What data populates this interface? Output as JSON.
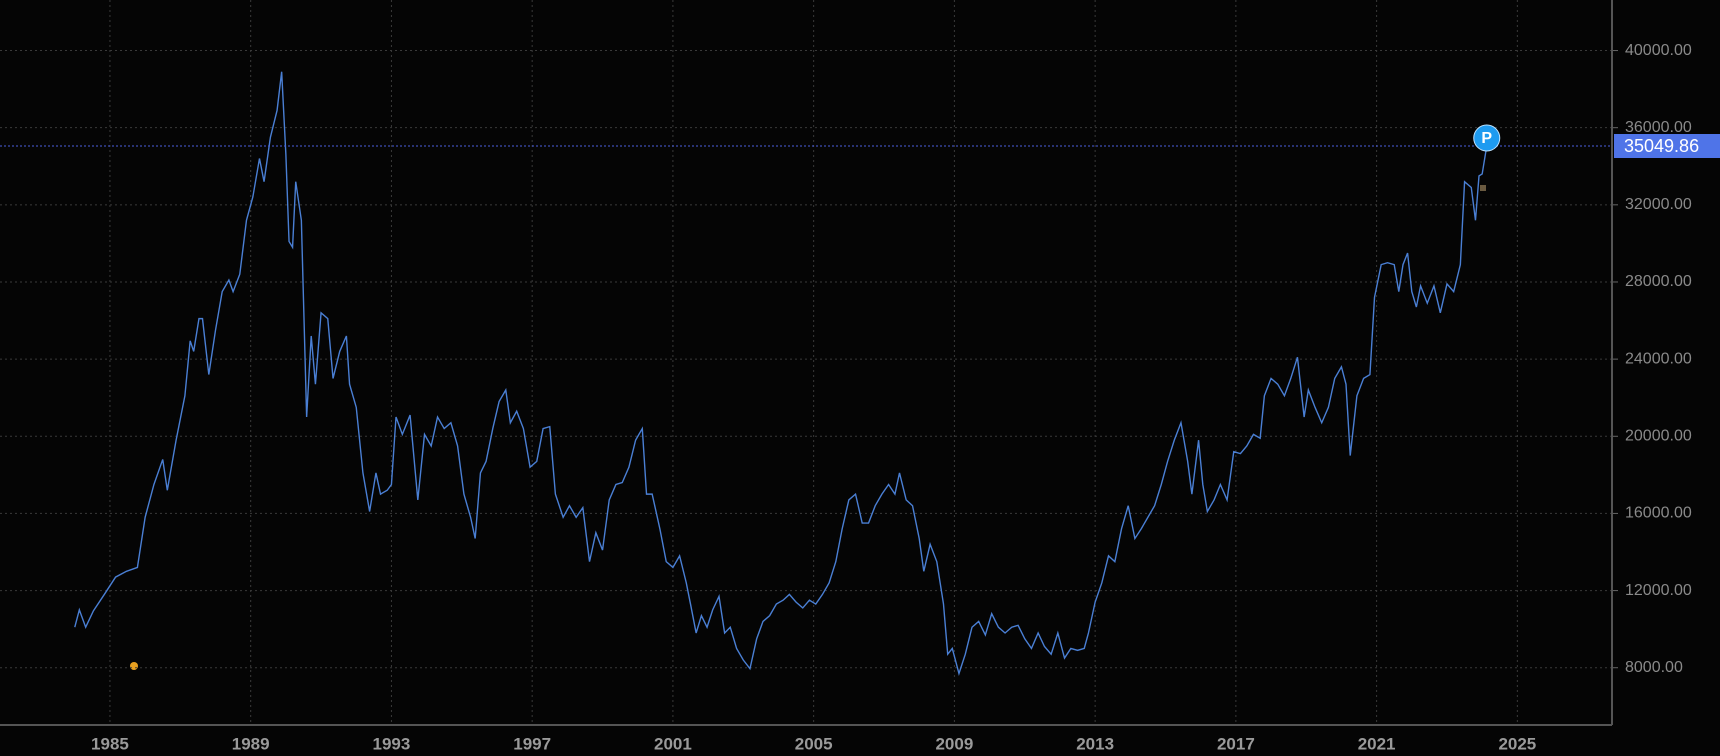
{
  "chart_data": {
    "type": "line",
    "color": "#4a7fd4",
    "grid": true,
    "xlim": [
      1981.875,
      2027.69
    ],
    "ylim": [
      5030,
      42620
    ],
    "xticks": [
      1985,
      1989,
      1993,
      1997,
      2001,
      2005,
      2009,
      2013,
      2017,
      2021,
      2025
    ],
    "yticks": [
      {
        "value": 8000,
        "label": "8000.00"
      },
      {
        "value": 12000,
        "label": "12000.00"
      },
      {
        "value": 16000,
        "label": "16000.00"
      },
      {
        "value": 20000,
        "label": "20000.00"
      },
      {
        "value": 24000,
        "label": "24000.00"
      },
      {
        "value": 28000,
        "label": "28000.00"
      },
      {
        "value": 32000,
        "label": "32000.00"
      },
      {
        "value": 36000,
        "label": "36000.00"
      },
      {
        "value": 40000,
        "label": "40000.00"
      }
    ],
    "current_price": 35049.86,
    "marker_label": "P",
    "x": [
      1984.0,
      1984.13,
      1984.31,
      1984.53,
      1984.84,
      1985.16,
      1985.47,
      1985.78,
      1986.0,
      1986.25,
      1986.5,
      1986.63,
      1986.88,
      1987.13,
      1987.28,
      1987.38,
      1987.53,
      1987.63,
      1987.81,
      1988.0,
      1988.19,
      1988.38,
      1988.5,
      1988.69,
      1988.88,
      1989.06,
      1989.25,
      1989.38,
      1989.56,
      1989.75,
      1989.88,
      1990.0,
      1990.09,
      1990.19,
      1990.28,
      1990.44,
      1990.59,
      1990.72,
      1990.84,
      1991.0,
      1991.19,
      1991.34,
      1991.53,
      1991.72,
      1991.81,
      1992.0,
      1992.19,
      1992.38,
      1992.56,
      1992.69,
      1992.88,
      1993.0,
      1993.13,
      1993.31,
      1993.53,
      1993.75,
      1993.94,
      1994.13,
      1994.31,
      1994.5,
      1994.69,
      1994.88,
      1995.06,
      1995.25,
      1995.38,
      1995.53,
      1995.69,
      1995.88,
      1996.06,
      1996.25,
      1996.38,
      1996.56,
      1996.75,
      1996.94,
      1997.13,
      1997.31,
      1997.5,
      1997.66,
      1997.88,
      1998.06,
      1998.25,
      1998.44,
      1998.63,
      1998.81,
      1999.0,
      1999.19,
      1999.38,
      1999.56,
      1999.75,
      1999.94,
      2000.13,
      2000.25,
      2000.41,
      2000.63,
      2000.81,
      2001.0,
      2001.19,
      2001.38,
      2001.5,
      2001.66,
      2001.81,
      2001.97,
      2002.13,
      2002.31,
      2002.47,
      2002.63,
      2002.81,
      2003.0,
      2003.19,
      2003.38,
      2003.56,
      2003.75,
      2003.94,
      2004.13,
      2004.31,
      2004.5,
      2004.69,
      2004.88,
      2005.06,
      2005.25,
      2005.44,
      2005.63,
      2005.81,
      2006.0,
      2006.19,
      2006.38,
      2006.56,
      2006.75,
      2006.94,
      2007.13,
      2007.31,
      2007.44,
      2007.63,
      2007.81,
      2008.0,
      2008.13,
      2008.31,
      2008.5,
      2008.69,
      2008.81,
      2008.94,
      2009.13,
      2009.31,
      2009.5,
      2009.69,
      2009.88,
      2010.06,
      2010.25,
      2010.44,
      2010.63,
      2010.81,
      2011.0,
      2011.19,
      2011.38,
      2011.56,
      2011.75,
      2011.94,
      2012.13,
      2012.31,
      2012.5,
      2012.69,
      2012.81,
      2013.0,
      2013.19,
      2013.38,
      2013.56,
      2013.75,
      2013.94,
      2014.13,
      2014.31,
      2014.5,
      2014.69,
      2014.88,
      2015.06,
      2015.25,
      2015.44,
      2015.63,
      2015.75,
      2015.94,
      2016.06,
      2016.19,
      2016.38,
      2016.56,
      2016.75,
      2016.94,
      2017.13,
      2017.31,
      2017.5,
      2017.69,
      2017.81,
      2018.0,
      2018.19,
      2018.38,
      2018.56,
      2018.75,
      2018.94,
      2019.06,
      2019.25,
      2019.44,
      2019.63,
      2019.81,
      2020.0,
      2020.13,
      2020.25,
      2020.44,
      2020.63,
      2020.81,
      2020.94,
      2021.13,
      2021.31,
      2021.5,
      2021.63,
      2021.75,
      2021.88,
      2022.0,
      2022.13,
      2022.25,
      2022.44,
      2022.63,
      2022.81,
      2023.0,
      2023.19,
      2023.38,
      2023.5,
      2023.69,
      2023.81,
      2023.91,
      2024.0,
      2024.13
    ],
    "values": [
      10100,
      11000,
      10100,
      10950,
      11800,
      12700,
      13000,
      13200,
      15800,
      17500,
      18800,
      17200,
      19800,
      22100,
      24950,
      24400,
      26100,
      26100,
      23200,
      25500,
      27500,
      28100,
      27500,
      28400,
      31200,
      32400,
      34400,
      33200,
      35500,
      36900,
      38900,
      34600,
      30100,
      29800,
      33200,
      31200,
      21000,
      25200,
      22700,
      26400,
      26100,
      23000,
      24400,
      25200,
      22700,
      21500,
      18100,
      16100,
      18100,
      17000,
      17200,
      17500,
      21000,
      20100,
      21100,
      16700,
      20100,
      19500,
      21000,
      20400,
      20700,
      19500,
      17000,
      15800,
      14700,
      18100,
      18700,
      20400,
      21800,
      22400,
      20700,
      21300,
      20400,
      18400,
      18700,
      20400,
      20500,
      17000,
      15800,
      16400,
      15800,
      16300,
      13500,
      15000,
      14100,
      16700,
      17500,
      17600,
      18400,
      19800,
      20400,
      17000,
      17000,
      15200,
      13500,
      13200,
      13800,
      12400,
      11300,
      9800,
      10700,
      10100,
      11000,
      11700,
      9800,
      10100,
      9000,
      8400,
      7950,
      9500,
      10400,
      10700,
      11300,
      11500,
      11800,
      11400,
      11100,
      11500,
      11300,
      11800,
      12400,
      13500,
      15200,
      16700,
      17000,
      15500,
      15500,
      16400,
      17000,
      17500,
      17000,
      18100,
      16700,
      16400,
      14700,
      13000,
      14400,
      13500,
      11300,
      8700,
      9000,
      7700,
      8700,
      10100,
      10400,
      9700,
      10800,
      10100,
      9800,
      10100,
      10200,
      9500,
      9000,
      9800,
      9100,
      8700,
      9800,
      8500,
      9000,
      8900,
      9000,
      9800,
      11400,
      12400,
      13800,
      13500,
      15200,
      16400,
      14700,
      15200,
      15800,
      16400,
      17500,
      18700,
      19800,
      20700,
      18700,
      17000,
      19800,
      17500,
      16100,
      16700,
      17500,
      16700,
      19200,
      19100,
      19500,
      20100,
      19900,
      22100,
      23000,
      22700,
      22100,
      23000,
      24100,
      21000,
      22400,
      21500,
      20700,
      21500,
      23000,
      23600,
      22700,
      19000,
      22100,
      23000,
      23200,
      27200,
      28900,
      29000,
      28900,
      27500,
      28900,
      29500,
      27500,
      26700,
      27800,
      26900,
      27800,
      26400,
      27900,
      27500,
      28900,
      33200,
      32900,
      31200,
      33500,
      33600,
      35050
    ]
  }
}
